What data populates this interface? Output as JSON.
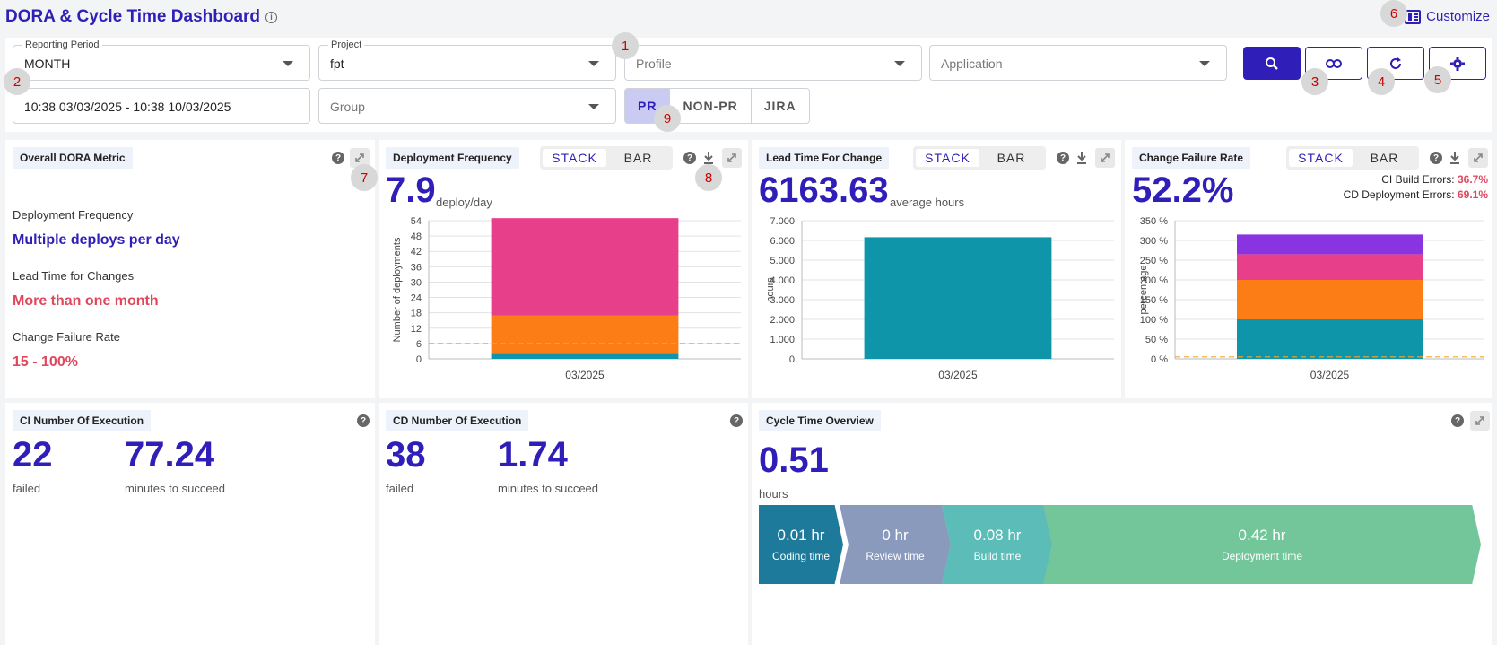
{
  "header": {
    "title": "DORA & Cycle Time Dashboard",
    "customize_label": "Customize"
  },
  "filters": {
    "reporting_period": {
      "label": "Reporting Period",
      "value": "MONTH"
    },
    "project": {
      "label": "Project",
      "value": "fpt"
    },
    "profile": {
      "placeholder": "Profile"
    },
    "application": {
      "placeholder": "Application"
    },
    "date_range": {
      "value": "10:38 03/03/2025 - 10:38 10/03/2025"
    },
    "group": {
      "placeholder": "Group"
    },
    "type_toggle": {
      "options": [
        "PR",
        "NON-PR",
        "JIRA"
      ],
      "selected": "PR"
    }
  },
  "markers": [
    "1",
    "2",
    "3",
    "4",
    "5",
    "6",
    "7",
    "8",
    "9"
  ],
  "overall": {
    "title": "Overall DORA Metric",
    "items": [
      {
        "label": "Deployment Frequency",
        "value": "Multiple deploys per day",
        "color": "#2f1fb8"
      },
      {
        "label": "Lead Time for Changes",
        "value": "More than one month",
        "color": "#e0475b"
      },
      {
        "label": "Change Failure Rate",
        "value": "15 - 100%",
        "color": "#e0475b"
      }
    ]
  },
  "toggle_labels": {
    "stack": "STACK",
    "bar": "BAR"
  },
  "deployment_frequency": {
    "title": "Deployment Frequency",
    "value": "7.9",
    "unit": "deploy/day"
  },
  "lead_time": {
    "title": "Lead Time For Change",
    "value": "6163.63",
    "unit": "average hours"
  },
  "change_failure": {
    "title": "Change Failure Rate",
    "value": "52.2%",
    "ci_label": "CI Build Errors:",
    "ci_value": "36.7%",
    "cd_label": "CD Deployment Errors:",
    "cd_value": "69.1%"
  },
  "ci_exec": {
    "title": "CI Number Of Execution",
    "failed": "22",
    "failed_label": "failed",
    "minutes": "77.24",
    "minutes_label": "minutes to succeed"
  },
  "cd_exec": {
    "title": "CD Number Of Execution",
    "failed": "38",
    "failed_label": "failed",
    "minutes": "1.74",
    "minutes_label": "minutes to succeed"
  },
  "cycle": {
    "title": "Cycle Time Overview",
    "value": "0.51",
    "unit": "hours",
    "segments": [
      {
        "value": "0.01 hr",
        "label": "Coding time",
        "color": "#1e7a9a"
      },
      {
        "value": "0 hr",
        "label": "Review time",
        "color": "#8a9abd"
      },
      {
        "value": "0.08 hr",
        "label": "Build time",
        "color": "#5bbcb8"
      },
      {
        "value": "0.42 hr",
        "label": "Deployment time",
        "color": "#73c69a"
      }
    ]
  },
  "chart_data": [
    {
      "type": "bar",
      "stacked": true,
      "categories": [
        "03/2025"
      ],
      "series": [
        {
          "values": [
            2
          ],
          "color": "#0f95aa"
        },
        {
          "values": [
            15
          ],
          "color": "#fc7d16"
        },
        {
          "values": [
            38
          ],
          "color": "#e83f8a"
        }
      ],
      "ylabel": "Number of deployments",
      "yticks": [
        "0",
        "6",
        "12",
        "18",
        "24",
        "30",
        "36",
        "42",
        "48",
        "54"
      ],
      "ylim": [
        0,
        54
      ],
      "threshold": 6,
      "threshold_color": "#f4a528",
      "grid": true
    },
    {
      "type": "bar",
      "categories": [
        "03/2025"
      ],
      "series": [
        {
          "values": [
            6163.63
          ],
          "color": "#0f95aa"
        }
      ],
      "ylabel": "hours",
      "yticks": [
        "0",
        "1.000",
        "2.000",
        "3.000",
        "4.000",
        "5.000",
        "6.000",
        "7.000"
      ],
      "ylim": [
        0,
        7000
      ],
      "grid": true
    },
    {
      "type": "bar",
      "stacked": true,
      "categories": [
        "03/2025"
      ],
      "series": [
        {
          "values": [
            100
          ],
          "color": "#0f95aa"
        },
        {
          "values": [
            100
          ],
          "color": "#fc7d16"
        },
        {
          "values": [
            65
          ],
          "color": "#e83f8a"
        },
        {
          "values": [
            50
          ],
          "color": "#8a33e0"
        }
      ],
      "ylabel": "percentage",
      "yticks": [
        "0 %",
        "50 %",
        "100 %",
        "150 %",
        "200 %",
        "250 %",
        "300 %",
        "350 %"
      ],
      "ylim": [
        0,
        350
      ],
      "threshold": 5,
      "threshold_color": "#f4a528",
      "grid": true
    }
  ]
}
